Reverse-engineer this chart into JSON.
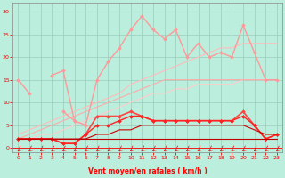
{
  "x": [
    0,
    1,
    2,
    3,
    4,
    5,
    6,
    7,
    8,
    9,
    10,
    11,
    12,
    13,
    14,
    15,
    16,
    17,
    18,
    19,
    20,
    21,
    22,
    23
  ],
  "series": [
    {
      "y": [
        2,
        2,
        3,
        3,
        4,
        5,
        6,
        7,
        8,
        9,
        10,
        11,
        12,
        12,
        13,
        13,
        14,
        14,
        14,
        14,
        15,
        15,
        15,
        15
      ],
      "color": "#ffcccc",
      "lw": 0.8,
      "marker": null,
      "ms": 0
    },
    {
      "y": [
        3,
        4,
        5,
        6,
        7,
        8,
        9,
        10,
        11,
        12,
        14,
        15,
        16,
        17,
        18,
        19,
        20,
        21,
        22,
        22,
        23,
        23,
        23,
        23
      ],
      "color": "#ffbbbb",
      "lw": 0.8,
      "marker": null,
      "ms": 0
    },
    {
      "y": [
        2,
        3,
        4,
        5,
        6,
        7,
        8,
        9,
        10,
        11,
        12,
        13,
        14,
        15,
        15,
        15,
        15,
        15,
        15,
        15,
        15,
        15,
        15,
        15
      ],
      "color": "#ffaaaa",
      "lw": 0.8,
      "marker": null,
      "ms": 0
    },
    {
      "y": [
        15,
        12,
        null,
        null,
        8,
        6,
        5,
        15,
        19,
        22,
        26,
        29,
        26,
        24,
        26,
        20,
        23,
        20,
        21,
        20,
        27,
        21,
        15,
        15
      ],
      "color": "#ff9999",
      "lw": 1.0,
      "marker": "D",
      "ms": 2
    },
    {
      "y": [
        null,
        null,
        null,
        16,
        17,
        6,
        null,
        null,
        null,
        null,
        null,
        null,
        null,
        null,
        null,
        null,
        null,
        null,
        null,
        null,
        null,
        null,
        null,
        null
      ],
      "color": "#ff9999",
      "lw": 1.0,
      "marker": "D",
      "ms": 2
    },
    {
      "y": [
        2,
        2,
        2,
        2,
        1,
        1,
        3,
        7,
        7,
        7,
        8,
        7,
        6,
        6,
        6,
        6,
        6,
        6,
        6,
        6,
        8,
        5,
        2,
        3
      ],
      "color": "#ff4444",
      "lw": 1.2,
      "marker": "D",
      "ms": 2
    },
    {
      "y": [
        2,
        2,
        2,
        2,
        1,
        1,
        3,
        5,
        5,
        6,
        7,
        7,
        6,
        6,
        6,
        6,
        6,
        6,
        6,
        6,
        7,
        5,
        2,
        3
      ],
      "color": "#ff2222",
      "lw": 1.0,
      "marker": "D",
      "ms": 2
    },
    {
      "y": [
        2,
        2,
        2,
        2,
        2,
        2,
        2,
        3,
        3,
        4,
        4,
        5,
        5,
        5,
        5,
        5,
        5,
        5,
        5,
        5,
        5,
        4,
        3,
        3
      ],
      "color": "#cc0000",
      "lw": 0.8,
      "marker": null,
      "ms": 0
    },
    {
      "y": [
        2,
        2,
        2,
        2,
        2,
        2,
        2,
        2,
        2,
        2,
        2,
        2,
        2,
        2,
        2,
        2,
        2,
        2,
        2,
        2,
        2,
        2,
        2,
        2
      ],
      "color": "#bb0000",
      "lw": 0.8,
      "marker": null,
      "ms": 0
    }
  ],
  "xlabel": "Vent moyen/en rafales ( km/h )",
  "xlim": [
    -0.5,
    23.5
  ],
  "ylim": [
    -1,
    32
  ],
  "yticks": [
    0,
    5,
    10,
    15,
    20,
    25,
    30
  ],
  "xticks": [
    0,
    1,
    2,
    3,
    4,
    5,
    6,
    7,
    8,
    9,
    10,
    11,
    12,
    13,
    14,
    15,
    16,
    17,
    18,
    19,
    20,
    21,
    22,
    23
  ],
  "bg_color": "#bbeedd",
  "grid_color": "#99ccbb",
  "tick_color": "#ff0000",
  "label_color": "#ff0000",
  "arrow_color": "#dd2222",
  "spine_color": "#888888"
}
